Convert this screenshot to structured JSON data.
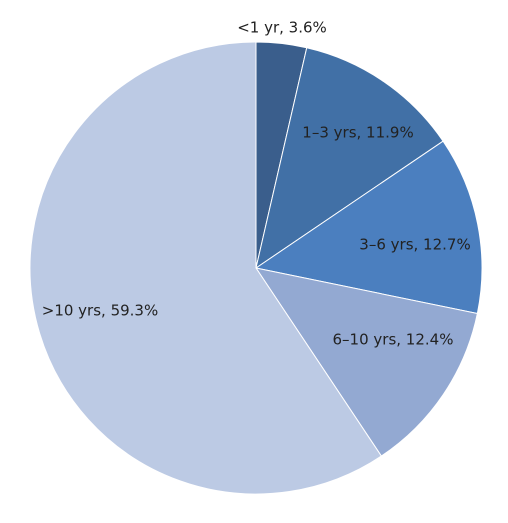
{
  "chart_data": {
    "type": "pie",
    "values": [
      3.6,
      11.9,
      12.7,
      12.4,
      59.3
    ],
    "value_labels": [
      "<1 yr, 3.6%",
      "1–3 yrs, 11.9%",
      "3–6 yrs, 12.7%",
      "6–10 yrs, 12.4%",
      ">10 yrs, 59.3%"
    ],
    "colors": [
      "#3a5e8c",
      "#4170a6",
      "#4b7fbf",
      "#93a9d2",
      "#bccae4"
    ]
  }
}
